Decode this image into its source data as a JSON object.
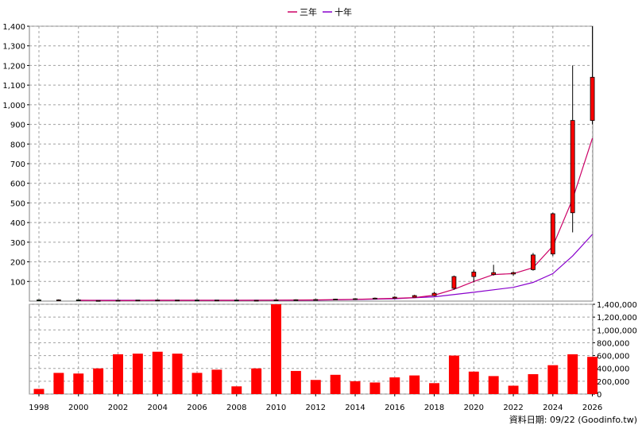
{
  "chart_data": {
    "type": "candlestick+bar",
    "legend": {
      "placement": "top-center",
      "items": [
        {
          "name": "三年",
          "color": "#cc0066"
        },
        {
          "name": "十年",
          "color": "#8800cc"
        }
      ]
    },
    "grid": true,
    "grid_style": "dashed",
    "x_axis": {
      "xlim": [
        1998,
        2026
      ],
      "ticks": [
        "1998",
        "2000",
        "2002",
        "2004",
        "2006",
        "2008",
        "2010",
        "2012",
        "2014",
        "2016",
        "2018",
        "2020",
        "2022",
        "2024",
        "2026"
      ]
    },
    "price_axis": {
      "side": "left",
      "ylim": [
        0,
        1400
      ],
      "ticks": [
        "100",
        "200",
        "300",
        "400",
        "500",
        "600",
        "700",
        "800",
        "900",
        "1,000",
        "1,100",
        "1,200",
        "1,300",
        "1,400"
      ]
    },
    "volume_axis": {
      "side": "right",
      "ylim": [
        0,
        1400000
      ],
      "ticks": [
        "0",
        "200,000",
        "400,000",
        "600,000",
        "800,000",
        "1,000,000",
        "1,200,000",
        "1,400,000"
      ]
    },
    "candles": [
      {
        "x": 1998,
        "open": 6,
        "close": 4,
        "high": 8,
        "low": 3
      },
      {
        "x": 1999,
        "open": 5,
        "close": 6,
        "high": 9,
        "low": 4
      },
      {
        "x": 2000,
        "open": 6,
        "close": 3,
        "high": 7,
        "low": 2
      },
      {
        "x": 2001,
        "open": 3,
        "close": 3,
        "high": 4,
        "low": 2
      },
      {
        "x": 2002,
        "open": 3,
        "close": 4,
        "high": 5,
        "low": 2
      },
      {
        "x": 2003,
        "open": 4,
        "close": 5,
        "high": 6,
        "low": 3
      },
      {
        "x": 2004,
        "open": 5,
        "close": 5,
        "high": 6,
        "low": 4
      },
      {
        "x": 2005,
        "open": 5,
        "close": 5,
        "high": 6,
        "low": 4
      },
      {
        "x": 2006,
        "open": 5,
        "close": 4,
        "high": 6,
        "low": 3
      },
      {
        "x": 2007,
        "open": 4,
        "close": 5,
        "high": 6,
        "low": 3
      },
      {
        "x": 2008,
        "open": 5,
        "close": 3,
        "high": 6,
        "low": 2
      },
      {
        "x": 2009,
        "open": 3,
        "close": 4,
        "high": 5,
        "low": 2
      },
      {
        "x": 2010,
        "open": 4,
        "close": 6,
        "high": 8,
        "low": 3
      },
      {
        "x": 2011,
        "open": 6,
        "close": 7,
        "high": 9,
        "low": 5
      },
      {
        "x": 2012,
        "open": 7,
        "close": 8,
        "high": 10,
        "low": 6
      },
      {
        "x": 2013,
        "open": 8,
        "close": 10,
        "high": 12,
        "low": 7
      },
      {
        "x": 2014,
        "open": 10,
        "close": 12,
        "high": 14,
        "low": 9
      },
      {
        "x": 2015,
        "open": 12,
        "close": 15,
        "high": 18,
        "low": 11
      },
      {
        "x": 2016,
        "open": 15,
        "close": 20,
        "high": 24,
        "low": 14
      },
      {
        "x": 2017,
        "open": 20,
        "close": 28,
        "high": 32,
        "low": 19
      },
      {
        "x": 2018,
        "open": 28,
        "close": 40,
        "high": 48,
        "low": 25
      },
      {
        "x": 2019,
        "open": 65,
        "close": 125,
        "high": 130,
        "low": 58
      },
      {
        "x": 2020,
        "open": 125,
        "close": 148,
        "high": 160,
        "low": 95
      },
      {
        "x": 2021,
        "open": 135,
        "close": 145,
        "high": 185,
        "low": 130
      },
      {
        "x": 2022,
        "open": 138,
        "close": 145,
        "high": 150,
        "low": 130
      },
      {
        "x": 2023,
        "open": 160,
        "close": 235,
        "high": 245,
        "low": 155
      },
      {
        "x": 2024,
        "open": 240,
        "close": 445,
        "high": 450,
        "low": 230
      },
      {
        "x": 2025,
        "open": 450,
        "close": 920,
        "high": 1200,
        "low": 350
      },
      {
        "x": 2026,
        "open": 920,
        "close": 1140,
        "high": 1400,
        "low": 900
      }
    ],
    "ma_3yr": {
      "name": "三年",
      "points": [
        [
          2000,
          4
        ],
        [
          2002,
          3
        ],
        [
          2004,
          4
        ],
        [
          2006,
          4
        ],
        [
          2008,
          4
        ],
        [
          2010,
          5
        ],
        [
          2012,
          6
        ],
        [
          2014,
          9
        ],
        [
          2016,
          14
        ],
        [
          2017,
          18
        ],
        [
          2018,
          30
        ],
        [
          2019,
          60
        ],
        [
          2020,
          100
        ],
        [
          2021,
          135
        ],
        [
          2022,
          140
        ],
        [
          2023,
          170
        ],
        [
          2024,
          280
        ],
        [
          2025,
          520
        ],
        [
          2026,
          830
        ]
      ]
    },
    "ma_10yr": {
      "name": "十年",
      "points": [
        [
          2000,
          4
        ],
        [
          2004,
          4
        ],
        [
          2008,
          4
        ],
        [
          2012,
          5
        ],
        [
          2014,
          8
        ],
        [
          2016,
          12
        ],
        [
          2018,
          22
        ],
        [
          2020,
          45
        ],
        [
          2022,
          70
        ],
        [
          2023,
          95
        ],
        [
          2024,
          140
        ],
        [
          2025,
          230
        ],
        [
          2026,
          340
        ]
      ]
    },
    "volume": [
      {
        "x": 1998,
        "value": 80000
      },
      {
        "x": 1999,
        "value": 330000
      },
      {
        "x": 2000,
        "value": 320000
      },
      {
        "x": 2001,
        "value": 400000
      },
      {
        "x": 2002,
        "value": 620000
      },
      {
        "x": 2003,
        "value": 630000
      },
      {
        "x": 2004,
        "value": 660000
      },
      {
        "x": 2005,
        "value": 630000
      },
      {
        "x": 2006,
        "value": 330000
      },
      {
        "x": 2007,
        "value": 380000
      },
      {
        "x": 2008,
        "value": 120000
      },
      {
        "x": 2009,
        "value": 400000
      },
      {
        "x": 2010,
        "value": 1450000
      },
      {
        "x": 2011,
        "value": 360000
      },
      {
        "x": 2012,
        "value": 220000
      },
      {
        "x": 2013,
        "value": 300000
      },
      {
        "x": 2014,
        "value": 200000
      },
      {
        "x": 2015,
        "value": 180000
      },
      {
        "x": 2016,
        "value": 260000
      },
      {
        "x": 2017,
        "value": 290000
      },
      {
        "x": 2018,
        "value": 170000
      },
      {
        "x": 2019,
        "value": 600000
      },
      {
        "x": 2020,
        "value": 350000
      },
      {
        "x": 2021,
        "value": 280000
      },
      {
        "x": 2022,
        "value": 130000
      },
      {
        "x": 2023,
        "value": 310000
      },
      {
        "x": 2024,
        "value": 450000
      },
      {
        "x": 2025,
        "value": 620000
      },
      {
        "x": 2026,
        "value": 580000
      }
    ],
    "colors": {
      "candle_up": "#ff0000",
      "candle_down": "#008000",
      "volume": "#ff0000",
      "grid": "#a0a0a0"
    }
  },
  "footer": {
    "date_label": "資料日期: 09/22",
    "source": "(Goodinfo.tw)"
  }
}
